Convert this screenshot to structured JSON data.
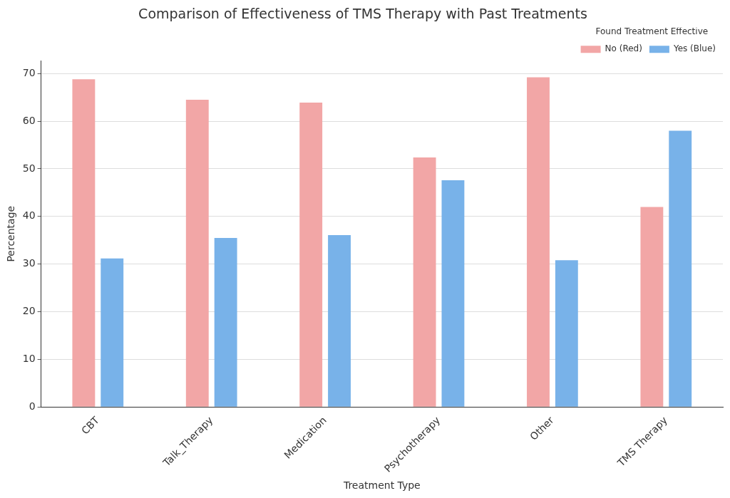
{
  "chart_data": {
    "type": "bar",
    "title": "Comparison of Effectiveness of TMS Therapy with Past Treatments",
    "x_label": "Treatment Type",
    "y_label": "Percentage",
    "legend_title": "Found Treatment Effective",
    "categories": [
      "CBT",
      "Talk_Therapy",
      "Medication",
      "Psychotherapy",
      "Other",
      "TMS Therapy"
    ],
    "series": [
      {
        "name": "No (Red)",
        "color": "#f2a6a6",
        "values": [
          68.8,
          64.5,
          63.9,
          52.4,
          69.2,
          42.0
        ]
      },
      {
        "name": "Yes (Blue)",
        "color": "#78b2e9",
        "values": [
          31.2,
          35.5,
          36.1,
          47.6,
          30.8,
          58.0
        ]
      }
    ],
    "ylim": [
      0,
      72.7
    ],
    "yticks": [
      0,
      10,
      20,
      30,
      40,
      50,
      60,
      70
    ],
    "grid": true,
    "legend": "upper right"
  }
}
